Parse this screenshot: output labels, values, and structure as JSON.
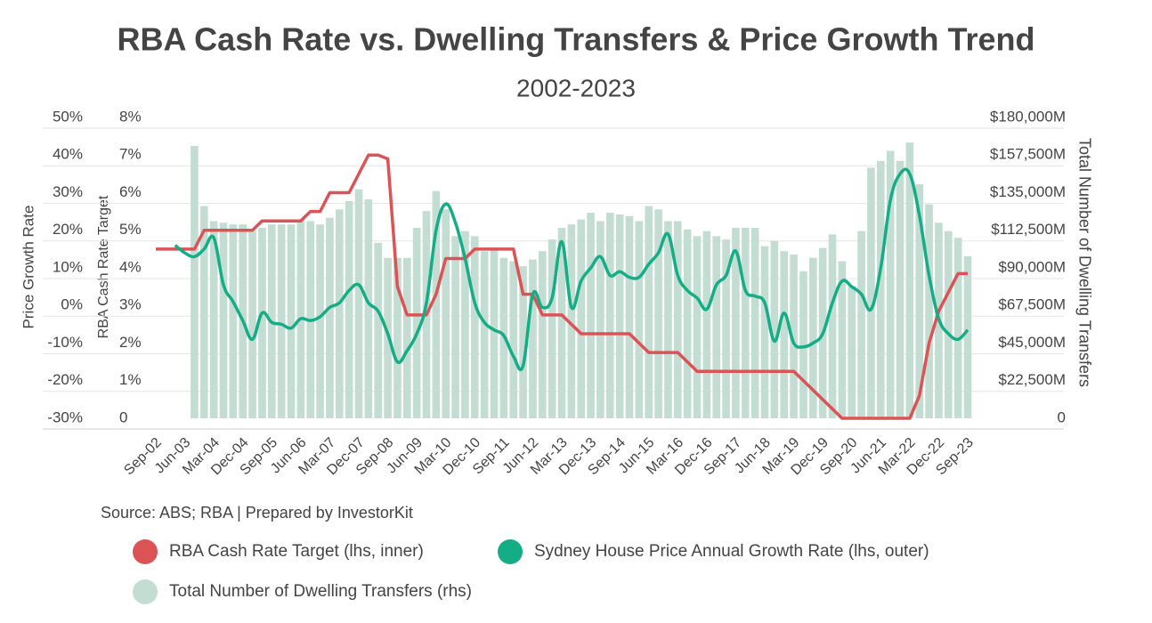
{
  "chart_data": {
    "type": "combo",
    "title": "RBA Cash Rate vs. Dwelling Transfers & Price Growth Trend",
    "subtitle": "2002-2023",
    "y_label": "Price Growth Rate",
    "y3_label": "RBA Cash Rate Target",
    "y2_label": "Total Number of Dwelling Transfers",
    "source": "Source: ABS; RBA | Prepared by InvestorKit",
    "categories": [
      "Sep-02",
      null,
      null,
      "Jun-03",
      null,
      null,
      "Mar-04",
      null,
      null,
      "Dec-04",
      null,
      null,
      "Sep-05",
      null,
      null,
      "Jun-06",
      null,
      null,
      "Mar-07",
      null,
      null,
      "Dec-07",
      null,
      null,
      "Sep-08",
      null,
      null,
      "Jun-09",
      null,
      null,
      "Mar-10",
      null,
      null,
      "Dec-10",
      null,
      null,
      "Sep-11",
      null,
      null,
      "Jun-12",
      null,
      null,
      "Mar-13",
      null,
      null,
      "Dec-13",
      null,
      null,
      "Sep-14",
      null,
      null,
      "Jun-15",
      null,
      null,
      "Mar-16",
      null,
      null,
      "Dec-16",
      null,
      null,
      "Sep-17",
      null,
      null,
      "Jun-18",
      null,
      null,
      "Mar-19",
      null,
      null,
      "Dec-19",
      null,
      null,
      "Sep-20",
      null,
      null,
      "Jun-21",
      null,
      null,
      "Mar-22",
      null,
      null,
      "Dec-22",
      null,
      null,
      "Sep-23"
    ],
    "ylim": [
      -30,
      50
    ],
    "yticks": [
      {
        "value": -30,
        "label": "-30%"
      },
      {
        "value": -20,
        "label": "-20%"
      },
      {
        "value": -10,
        "label": "-10%"
      },
      {
        "value": 0,
        "label": "0%"
      },
      {
        "value": 10,
        "label": "10%"
      },
      {
        "value": 20,
        "label": "20%"
      },
      {
        "value": 30,
        "label": "30%"
      },
      {
        "value": 40,
        "label": "40%"
      },
      {
        "value": 50,
        "label": "50%"
      }
    ],
    "y3lim": [
      0,
      8
    ],
    "y3ticks": [
      0,
      {
        "value": 1,
        "label": "1%"
      },
      {
        "value": 2,
        "label": "2%"
      },
      {
        "value": 3,
        "label": "3%"
      },
      {
        "value": 4,
        "label": "4%"
      },
      {
        "value": 5,
        "label": "5%"
      },
      {
        "value": 6,
        "label": "6%"
      },
      {
        "value": 7,
        "label": "7%"
      },
      {
        "value": 8,
        "label": "8%"
      }
    ],
    "y2lim": [
      0,
      180000
    ],
    "y2ticks": [
      0,
      {
        "value": 22500,
        "label": "$22,500M"
      },
      {
        "value": 45000,
        "label": "$45,000M"
      },
      {
        "value": 67500,
        "label": "$67,500M"
      },
      {
        "value": 90000,
        "label": "$90,000M"
      },
      {
        "value": 112500,
        "label": "$112,500M"
      },
      {
        "value": 135000,
        "label": "$135,000M"
      },
      {
        "value": 157500,
        "label": "$157,500M"
      },
      {
        "value": 180000,
        "label": "$180,000M"
      }
    ],
    "grid": true,
    "series": [
      {
        "name": "RBA Cash Rate Target (lhs, inner)",
        "type": "line",
        "axis": "y3",
        "color": "#dc5356",
        "values": [
          4.5,
          4.5,
          4.5,
          4.5,
          4.5,
          5,
          5,
          5,
          5,
          5,
          5,
          5.25,
          5.25,
          5.25,
          5.25,
          5.25,
          5.5,
          5.5,
          6,
          6,
          6,
          6.5,
          7,
          7,
          6.9,
          3.5,
          2.75,
          2.75,
          2.75,
          3.3,
          4.25,
          4.25,
          4.25,
          4.5,
          4.5,
          4.5,
          4.5,
          4.5,
          3.3,
          3.3,
          2.75,
          2.75,
          2.75,
          2.5,
          2.25,
          2.25,
          2.25,
          2.25,
          2.25,
          2.25,
          2,
          1.75,
          1.75,
          1.75,
          1.75,
          1.5,
          1.25,
          1.25,
          1.25,
          1.25,
          1.25,
          1.25,
          1.25,
          1.25,
          1.25,
          1.25,
          1.25,
          1,
          0.75,
          0.5,
          0.25,
          0,
          0,
          0,
          0,
          0,
          0,
          0,
          0,
          0.6,
          2,
          2.85,
          3.35,
          3.85,
          3.85
        ]
      },
      {
        "name": "Sydney House Price Annual Growth Rate (lhs, outer)",
        "type": "line",
        "axis": "y",
        "color": "#14ad86",
        "values": [
          null,
          null,
          16,
          14,
          13,
          15,
          18,
          5.5,
          1,
          -4,
          -9,
          -2,
          -4.5,
          -5,
          -6,
          -3.5,
          -4,
          -3,
          -0.5,
          0.7,
          4,
          5.5,
          0.7,
          -1.5,
          -7.5,
          -15,
          -12,
          -7.5,
          0.7,
          20,
          27,
          22,
          12.5,
          0.7,
          -4.5,
          -6.5,
          -8,
          -13.5,
          -16,
          3,
          -0.5,
          2,
          17,
          -0.5,
          6.5,
          10,
          13,
          8,
          9,
          7.5,
          7.5,
          11,
          14,
          19,
          8,
          4,
          2,
          -1,
          5.5,
          8,
          14.5,
          4,
          2.5,
          0.7,
          -9.5,
          -2,
          -10,
          -11,
          -10,
          -7.5,
          0.7,
          6.5,
          5,
          3,
          -1,
          10,
          28,
          35,
          35,
          24,
          8,
          -3.5,
          -7.5,
          -9,
          -6.5
        ]
      },
      {
        "name": "Total Number of Dwelling Transfers (rhs)",
        "type": "bar",
        "axis": "y2",
        "color": "#c3ddd2",
        "values": [
          null,
          null,
          null,
          null,
          163000,
          127000,
          118000,
          117000,
          116000,
          116000,
          112000,
          114000,
          116000,
          116000,
          116000,
          119000,
          118000,
          116000,
          120000,
          125000,
          130000,
          137000,
          131000,
          105000,
          96000,
          96000,
          96000,
          114000,
          124000,
          136000,
          125000,
          109000,
          112000,
          109000,
          100000,
          101000,
          96000,
          94000,
          91000,
          95000,
          100000,
          107000,
          114000,
          116000,
          119000,
          123000,
          118000,
          123000,
          122000,
          121000,
          118000,
          127000,
          125000,
          118000,
          118000,
          113000,
          109000,
          112000,
          109000,
          107000,
          114000,
          114000,
          114000,
          103000,
          106000,
          100000,
          98000,
          88000,
          96000,
          102000,
          110000,
          94000,
          79000,
          112000,
          150000,
          154000,
          160000,
          154000,
          165000,
          140000,
          128000,
          117000,
          112000,
          108000,
          97000
        ]
      }
    ]
  }
}
